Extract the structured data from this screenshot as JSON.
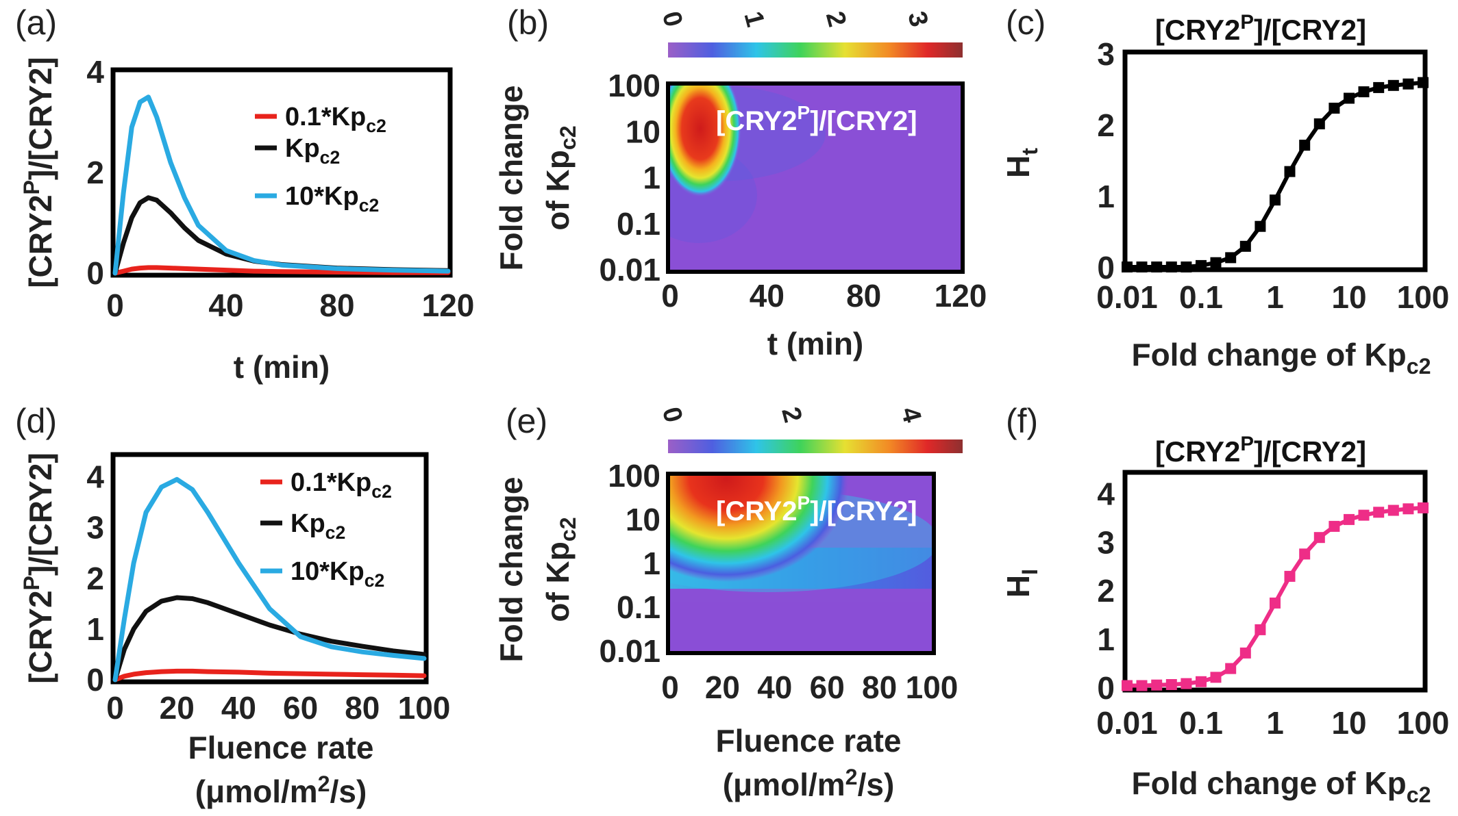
{
  "chart_data": [
    {
      "panel": "(a)",
      "type": "line",
      "xlabel": "t (min)",
      "ylabel": {
        "pre": "[CRY2",
        "sup": "P",
        "post": "]/[CRY2]"
      },
      "xlim": [
        0,
        120
      ],
      "ylim": [
        0,
        4
      ],
      "xticks": [
        0,
        40,
        80,
        120
      ],
      "yticks": [
        0,
        2,
        4
      ],
      "x": [
        0,
        3,
        6,
        9,
        12,
        15,
        20,
        25,
        30,
        40,
        50,
        60,
        80,
        100,
        120
      ],
      "series": [
        {
          "name": {
            "pre": "0.1*Kp",
            "sub": "c2"
          },
          "color": "#e8231c",
          "values": [
            0,
            0.04,
            0.08,
            0.1,
            0.11,
            0.11,
            0.1,
            0.09,
            0.08,
            0.06,
            0.04,
            0.03,
            0.02,
            0.01,
            0.01
          ]
        },
        {
          "name": {
            "pre": "Kp",
            "sub": "c2"
          },
          "color": "#111111",
          "values": [
            0,
            0.6,
            1.1,
            1.4,
            1.5,
            1.45,
            1.2,
            0.9,
            0.65,
            0.38,
            0.24,
            0.17,
            0.1,
            0.07,
            0.05
          ]
        },
        {
          "name": {
            "pre": "10*Kp",
            "sub": "c2"
          },
          "color": "#2aaae2",
          "values": [
            0,
            1.6,
            2.9,
            3.4,
            3.5,
            3.1,
            2.2,
            1.5,
            0.95,
            0.45,
            0.25,
            0.16,
            0.09,
            0.06,
            0.04
          ]
        }
      ]
    },
    {
      "panel": "(b)",
      "type": "heatmap",
      "xlabel": "t (min)",
      "ylabel": {
        "line1": "Fold change",
        "line2pre": "of  Kp",
        "line2sub": "c2"
      },
      "xlim": [
        0,
        120
      ],
      "ylim": [
        0.01,
        100
      ],
      "yscale": "log",
      "xticks": [
        0,
        40,
        80,
        120
      ],
      "yticks": [
        "0.01",
        "0.1",
        "1",
        "10",
        "100"
      ],
      "colorbar": {
        "range": [
          0,
          3.5
        ],
        "ticks": [
          0,
          1,
          2,
          3
        ]
      },
      "label": {
        "pre": "[CRY2",
        "sup": "P",
        "post": "]/[CRY2]"
      }
    },
    {
      "panel": "(c)",
      "type": "line",
      "title": {
        "pre": "[CRY2",
        "sup": "P",
        "post": "]/[CRY2]"
      },
      "xlabel": {
        "pre": "Fold change of Kp",
        "sub": "c2"
      },
      "ylabel": {
        "pre": "H",
        "sub": "t"
      },
      "xscale": "log",
      "xlim": [
        0.01,
        100
      ],
      "ylim": [
        0,
        3
      ],
      "xticks": [
        "0.01",
        "0.1",
        "1",
        "10",
        "100"
      ],
      "yticks": [
        0,
        1,
        2,
        3
      ],
      "x": [
        0.01,
        0.0158,
        0.0251,
        0.0398,
        0.0631,
        0.1,
        0.158,
        0.251,
        0.398,
        0.631,
        1,
        1.58,
        2.51,
        3.98,
        6.31,
        10,
        15.8,
        25.1,
        39.8,
        63.1,
        100
      ],
      "series": [
        {
          "name": "",
          "color": "#000000",
          "values": [
            0.01,
            0.01,
            0.01,
            0.01,
            0.01,
            0.03,
            0.07,
            0.14,
            0.3,
            0.58,
            0.95,
            1.35,
            1.72,
            2.02,
            2.24,
            2.38,
            2.47,
            2.53,
            2.56,
            2.58,
            2.6
          ]
        }
      ]
    },
    {
      "panel": "(d)",
      "type": "line",
      "xlabel": "Fluence rate",
      "xlabel2": {
        "pre": "(μmol/m",
        "sup": "2",
        "post": "/s)"
      },
      "ylabel": {
        "pre": "[CRY2",
        "sup": "P",
        "post": "]/[CRY2]"
      },
      "xlim": [
        0,
        100
      ],
      "ylim": [
        0,
        4.4
      ],
      "xticks": [
        0,
        20,
        40,
        60,
        80,
        100
      ],
      "yticks": [
        0,
        1,
        2,
        3,
        4
      ],
      "x": [
        0,
        3,
        6,
        10,
        15,
        20,
        25,
        30,
        40,
        50,
        60,
        70,
        80,
        90,
        100
      ],
      "series": [
        {
          "name": {
            "pre": "0.1*Kp",
            "sub": "c2"
          },
          "color": "#e8231c",
          "values": [
            0,
            0.07,
            0.11,
            0.14,
            0.16,
            0.17,
            0.17,
            0.16,
            0.15,
            0.13,
            0.12,
            0.11,
            0.1,
            0.09,
            0.08
          ]
        },
        {
          "name": {
            "pre": "Kp",
            "sub": "c2"
          },
          "color": "#111111",
          "values": [
            0,
            0.6,
            1.0,
            1.35,
            1.55,
            1.62,
            1.6,
            1.52,
            1.3,
            1.08,
            0.9,
            0.76,
            0.66,
            0.57,
            0.5
          ]
        },
        {
          "name": {
            "pre": "10*Kp",
            "sub": "c2"
          },
          "color": "#2aaae2",
          "values": [
            0,
            1.2,
            2.3,
            3.3,
            3.8,
            3.95,
            3.75,
            3.3,
            2.3,
            1.4,
            0.85,
            0.65,
            0.55,
            0.48,
            0.42
          ]
        }
      ]
    },
    {
      "panel": "(e)",
      "type": "heatmap",
      "xlabel": "Fluence rate",
      "xlabel2": {
        "pre": "(μmol/m",
        "sup": "2",
        "post": "/s)"
      },
      "ylabel": {
        "line1": "Fold change",
        "line2pre": "of  Kp",
        "line2sub": "c2"
      },
      "xlim": [
        0,
        100
      ],
      "ylim": [
        0.01,
        100
      ],
      "yscale": "log",
      "xticks": [
        0,
        20,
        40,
        60,
        80,
        100
      ],
      "yticks": [
        "0.01",
        "0.1",
        "1",
        "10",
        "100"
      ],
      "colorbar": {
        "range": [
          0,
          4.8
        ],
        "ticks": [
          0,
          2,
          4
        ]
      },
      "label": {
        "pre": "[CRY2",
        "sup": "P",
        "post": "]/[CRY2]"
      }
    },
    {
      "panel": "(f)",
      "type": "line",
      "title": {
        "pre": "[CRY2",
        "sup": "P",
        "post": "]/[CRY2]"
      },
      "xlabel": {
        "pre": "Fold change of Kp",
        "sub": "c2"
      },
      "ylabel": {
        "pre": "H",
        "sub": "I"
      },
      "xscale": "log",
      "xlim": [
        0.01,
        100
      ],
      "ylim": [
        0,
        4.4
      ],
      "xticks": [
        "0.01",
        "0.1",
        "1",
        "10",
        "100"
      ],
      "yticks": [
        0,
        1,
        2,
        3,
        4
      ],
      "x": [
        0.01,
        0.0158,
        0.0251,
        0.0398,
        0.0631,
        0.1,
        0.158,
        0.251,
        0.398,
        0.631,
        1,
        1.58,
        2.51,
        3.98,
        6.31,
        10,
        15.8,
        25.1,
        39.8,
        63.1,
        100
      ],
      "series": [
        {
          "name": "",
          "color": "#ee2d87",
          "values": [
            0.05,
            0.05,
            0.06,
            0.07,
            0.09,
            0.13,
            0.22,
            0.4,
            0.72,
            1.2,
            1.75,
            2.3,
            2.76,
            3.1,
            3.33,
            3.47,
            3.56,
            3.62,
            3.66,
            3.69,
            3.71
          ]
        }
      ]
    }
  ]
}
